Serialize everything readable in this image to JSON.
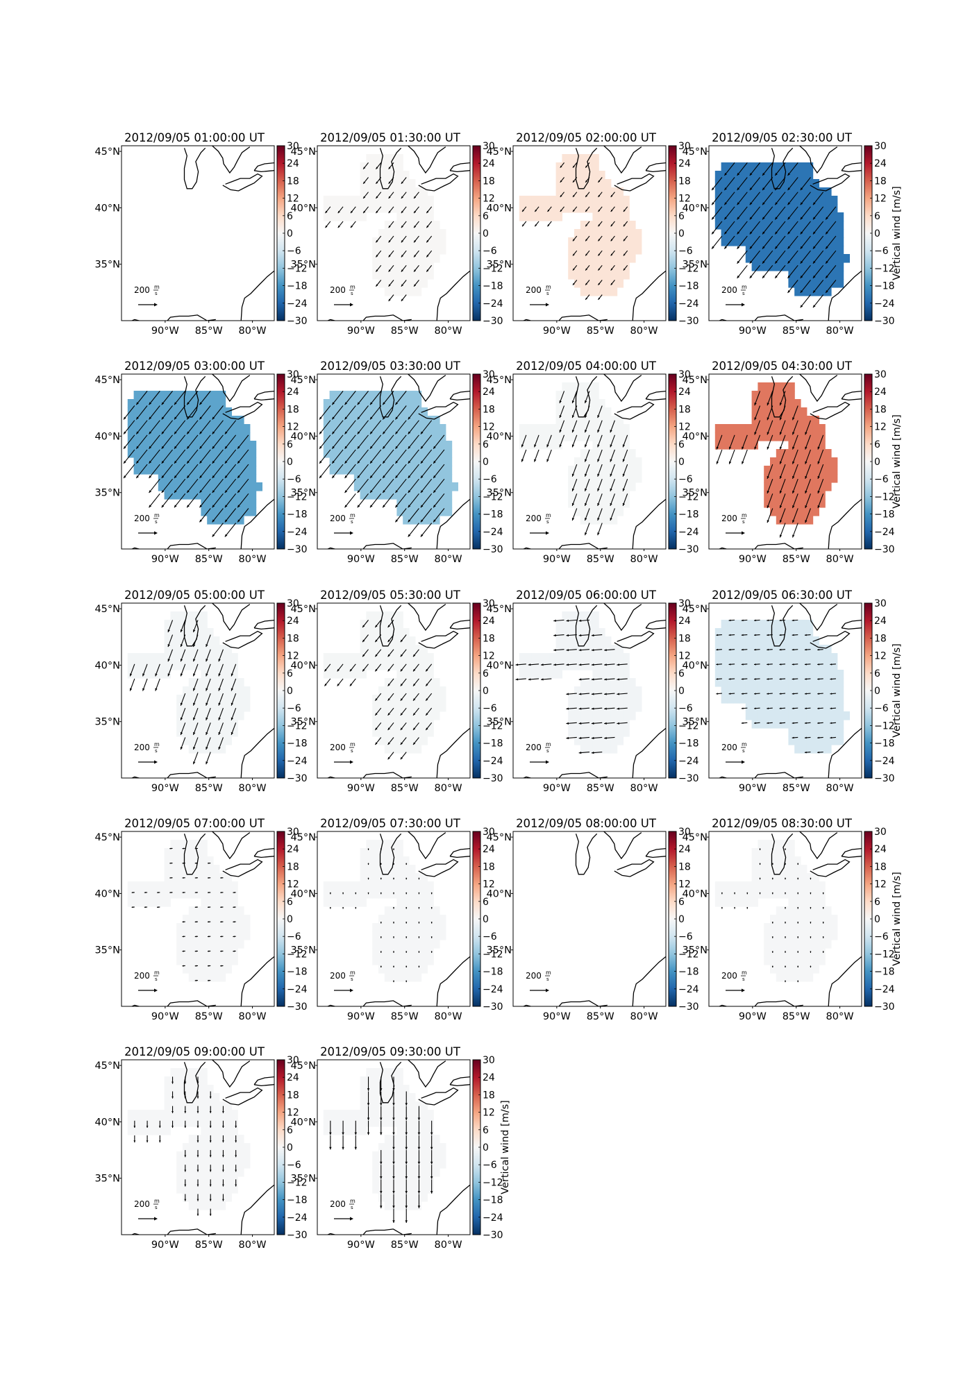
{
  "figure": {
    "colorbar_label": "Vertical wind [m/s]",
    "colorbar_ticks": [
      "30",
      "24",
      "18",
      "12",
      "6",
      "0",
      "−6",
      "−12",
      "−18",
      "−24",
      "−30"
    ],
    "lat_labels": [
      "45°N",
      "40°N",
      "35°N"
    ],
    "lon_labels": [
      "90°W",
      "85°W",
      "80°W"
    ],
    "scale_value": "200",
    "scale_unit_num": "m",
    "scale_unit_den": "s",
    "colormap": [
      "#67001f",
      "#b2182b",
      "#d6604d",
      "#f4a582",
      "#fddbc7",
      "#f7f7f7",
      "#d1e5f0",
      "#92c5de",
      "#4393c3",
      "#2166ac",
      "#053061"
    ],
    "panels": [
      {
        "title": "2012/09/05 01:00:00 UT",
        "wind": 0,
        "shape": "none",
        "arrows": "none",
        "arrow_len": 0
      },
      {
        "title": "2012/09/05 01:30:00 UT",
        "wind": 0.3,
        "shape": "full",
        "arrows": "sw",
        "arrow_len": 0.7
      },
      {
        "title": "2012/09/05 02:00:00 UT",
        "wind": 4,
        "shape": "full",
        "arrows": "sw",
        "arrow_len": 0.55
      },
      {
        "title": "2012/09/05 02:30:00 UT",
        "wind": -22,
        "shape": "big",
        "arrows": "sw",
        "arrow_len": 1.4
      },
      {
        "title": "2012/09/05 03:00:00 UT",
        "wind": -16,
        "shape": "big",
        "arrows": "sw",
        "arrow_len": 1.5
      },
      {
        "title": "2012/09/05 03:30:00 UT",
        "wind": -12,
        "shape": "big",
        "arrows": "sw",
        "arrow_len": 1.5
      },
      {
        "title": "2012/09/05 04:00:00 UT",
        "wind": -0.5,
        "shape": "full",
        "arrows": "ssw",
        "arrow_len": 1.1
      },
      {
        "title": "2012/09/05 04:30:00 UT",
        "wind": 16,
        "shape": "full",
        "arrows": "ssw",
        "arrow_len": 1.3
      },
      {
        "title": "2012/09/05 05:00:00 UT",
        "wind": -0.8,
        "shape": "full",
        "arrows": "ssw",
        "arrow_len": 1.1
      },
      {
        "title": "2012/09/05 05:30:00 UT",
        "wind": -0.5,
        "shape": "full",
        "arrows": "sw",
        "arrow_len": 0.8
      },
      {
        "title": "2012/09/05 06:00:00 UT",
        "wind": -1,
        "shape": "full",
        "arrows": "w",
        "arrow_len": 0.9
      },
      {
        "title": "2012/09/05 06:30:00 UT",
        "wind": -5,
        "shape": "big",
        "arrows": "w",
        "arrow_len": 0.5
      },
      {
        "title": "2012/09/05 07:00:00 UT",
        "wind": -0.3,
        "shape": "full",
        "arrows": "w",
        "arrow_len": 0.25
      },
      {
        "title": "2012/09/05 07:30:00 UT",
        "wind": -0.3,
        "shape": "full",
        "arrows": "s",
        "arrow_len": 0.15
      },
      {
        "title": "2012/09/05 08:00:00 UT",
        "wind": 0,
        "shape": "none",
        "arrows": "none",
        "arrow_len": 0
      },
      {
        "title": "2012/09/05 08:30:00 UT",
        "wind": -0.3,
        "shape": "full",
        "arrows": "s",
        "arrow_len": 0.15
      },
      {
        "title": "2012/09/05 09:00:00 UT",
        "wind": -0.3,
        "shape": "full",
        "arrows": "s",
        "arrow_len": 0.6
      },
      {
        "title": "2012/09/05 09:30:00 UT",
        "wind": -0.3,
        "shape": "full",
        "arrows": "s",
        "arrow_len": 1.2
      }
    ]
  }
}
